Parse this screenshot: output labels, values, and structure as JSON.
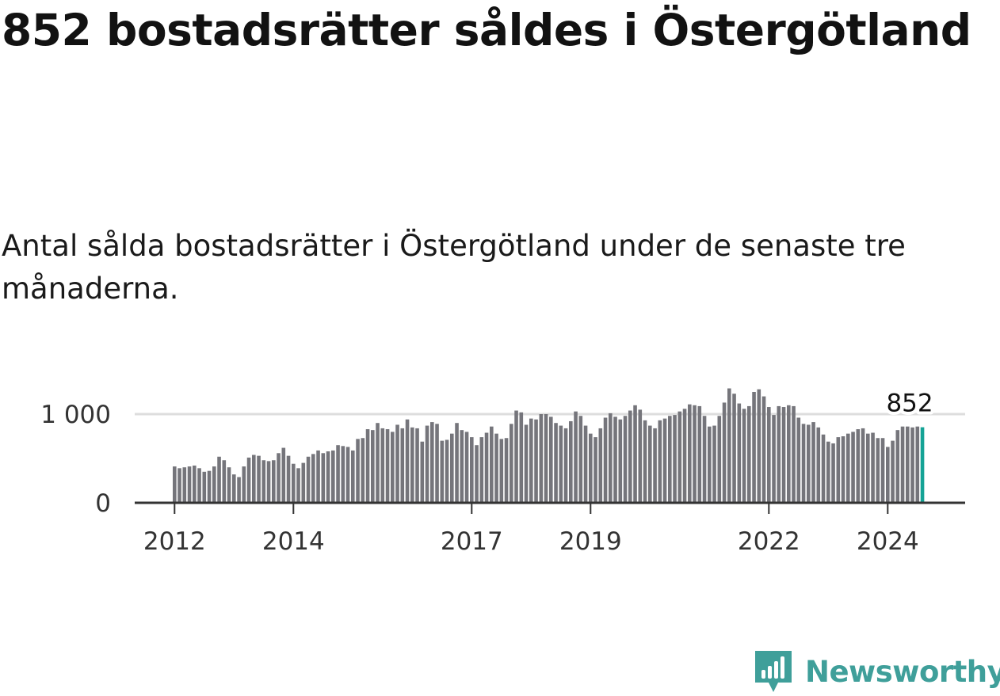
{
  "header": {
    "title": "852 bostadsrätter såldes i Östergötland",
    "subtitle": "Antal sålda bostadsrätter i Östergötland under de senaste tre månaderna."
  },
  "brand": {
    "name": "Newsworthy",
    "color": "#3f9f9a",
    "icon": "newsworthy-logo-icon"
  },
  "colors": {
    "bar": "#75757b",
    "highlight": "#15a396",
    "axis": "#333333",
    "grid": "#dddddd"
  },
  "chart_data": {
    "type": "bar",
    "title": "",
    "xlabel": "",
    "ylabel": "",
    "ylim": [
      0,
      1350
    ],
    "yticks": [
      {
        "value": 0,
        "label": "0"
      },
      {
        "value": 1000,
        "label": "1 000"
      }
    ],
    "xticks": [
      {
        "index": 0,
        "label": "2012"
      },
      {
        "index": 24,
        "label": "2014"
      },
      {
        "index": 60,
        "label": "2017"
      },
      {
        "index": 84,
        "label": "2019"
      },
      {
        "index": 120,
        "label": "2022"
      },
      {
        "index": 144,
        "label": "2024"
      }
    ],
    "grid": true,
    "highlight_label": "852",
    "series": [
      {
        "highlight_last": true,
        "values": [
          410,
          390,
          400,
          410,
          420,
          390,
          350,
          360,
          410,
          520,
          480,
          400,
          320,
          290,
          410,
          510,
          540,
          530,
          480,
          470,
          480,
          560,
          620,
          530,
          440,
          390,
          450,
          520,
          550,
          590,
          560,
          580,
          590,
          650,
          640,
          630,
          590,
          720,
          730,
          830,
          820,
          900,
          840,
          830,
          800,
          880,
          840,
          940,
          850,
          840,
          690,
          870,
          910,
          890,
          700,
          710,
          780,
          900,
          820,
          800,
          740,
          650,
          740,
          790,
          860,
          780,
          720,
          730,
          890,
          1040,
          1020,
          880,
          950,
          940,
          1000,
          1000,
          970,
          900,
          870,
          840,
          920,
          1030,
          980,
          870,
          780,
          740,
          840,
          960,
          1010,
          970,
          940,
          980,
          1040,
          1100,
          1050,
          930,
          870,
          840,
          930,
          950,
          980,
          990,
          1030,
          1060,
          1110,
          1100,
          1090,
          980,
          860,
          870,
          980,
          1130,
          1290,
          1230,
          1120,
          1060,
          1090,
          1250,
          1280,
          1200,
          1080,
          990,
          1090,
          1080,
          1100,
          1090,
          960,
          890,
          880,
          910,
          850,
          770,
          690,
          670,
          740,
          750,
          780,
          800,
          830,
          840,
          780,
          790,
          730,
          730,
          630,
          700,
          820,
          860,
          860,
          850,
          860,
          852
        ]
      }
    ]
  }
}
